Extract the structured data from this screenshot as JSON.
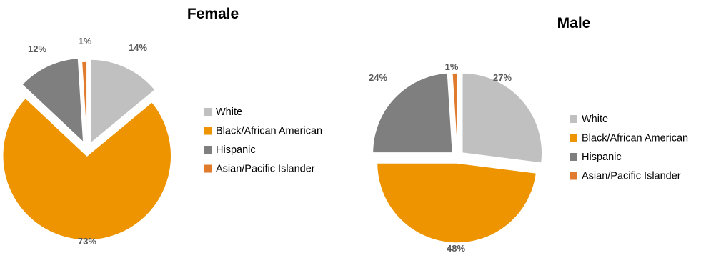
{
  "chart_data": [
    {
      "type": "pie",
      "title": "Female",
      "categories": [
        "White",
        "Black/African American",
        "Hispanic",
        "Asian/Pacific Islander"
      ],
      "values": [
        14,
        73,
        12,
        1
      ],
      "labels": [
        "14%",
        "73%",
        "12%",
        "1%"
      ],
      "colors": [
        "#c0c0c0",
        "#ed9400",
        "#7f7f7f",
        "#e07a2c"
      ],
      "exploded": true,
      "legend_position": "right"
    },
    {
      "type": "pie",
      "title": "Male",
      "categories": [
        "White",
        "Black/African American",
        "Hispanic",
        "Asian/Pacific Islander"
      ],
      "values": [
        27,
        48,
        24,
        1
      ],
      "labels": [
        "27%",
        "48%",
        "24%",
        "1%"
      ],
      "colors": [
        "#c0c0c0",
        "#ed9400",
        "#7f7f7f",
        "#e07a2c"
      ],
      "exploded": true,
      "legend_position": "right"
    }
  ]
}
